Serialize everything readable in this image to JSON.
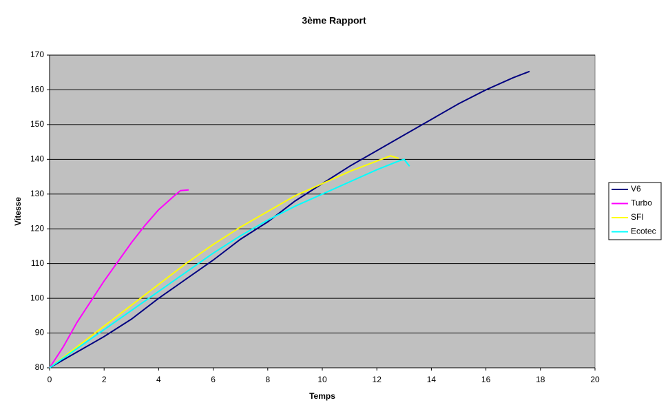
{
  "chart_data": {
    "type": "line",
    "title": "3ème Rapport",
    "x_label": "Temps",
    "y_label": "Vitesse",
    "xlim": [
      0,
      20
    ],
    "xticks": [
      0,
      2,
      4,
      6,
      8,
      10,
      12,
      14,
      16,
      18,
      20
    ],
    "ylim": [
      80,
      170
    ],
    "yticks": [
      80,
      90,
      100,
      110,
      120,
      130,
      140,
      150,
      160,
      170
    ],
    "grid": true,
    "legend": "right",
    "series": [
      {
        "name": "V6",
        "color": "#000080",
        "x": [
          0,
          1,
          2,
          3,
          4,
          5,
          6,
          7,
          8,
          9,
          10,
          11,
          12,
          13,
          14,
          15,
          16,
          17,
          17.6
        ],
        "values": [
          80,
          84.5,
          89,
          94,
          100,
          105.5,
          111,
          117,
          122,
          128,
          133,
          138,
          142.5,
          147,
          151.5,
          156,
          160,
          163.5,
          165.3
        ]
      },
      {
        "name": "Turbo",
        "color": "#ff00ff",
        "x": [
          0,
          0.5,
          1,
          1.5,
          2,
          2.5,
          3,
          3.5,
          4,
          4.5,
          4.8,
          5.1
        ],
        "values": [
          80,
          86,
          93,
          99,
          105,
          110.5,
          116,
          121,
          125.5,
          129,
          131,
          131.2
        ]
      },
      {
        "name": "SFI",
        "color": "#ffff00",
        "x": [
          0,
          1,
          2,
          3,
          4,
          5,
          6,
          7,
          8,
          9,
          10,
          11,
          12,
          12.5,
          12.8
        ],
        "values": [
          80,
          86,
          92,
          98,
          104,
          110,
          115.5,
          120.5,
          125,
          129.5,
          133,
          136.5,
          139.5,
          141,
          140.3
        ]
      },
      {
        "name": "Ecotec",
        "color": "#00ffff",
        "x": [
          0,
          1,
          2,
          3,
          4,
          5,
          6,
          7,
          8,
          9,
          10,
          11,
          12,
          12.8,
          13,
          13.2
        ],
        "values": [
          80,
          85.5,
          91,
          96.5,
          102,
          107.5,
          113,
          118,
          122.5,
          126.5,
          130,
          133.5,
          137,
          139.5,
          140,
          138
        ]
      }
    ]
  }
}
